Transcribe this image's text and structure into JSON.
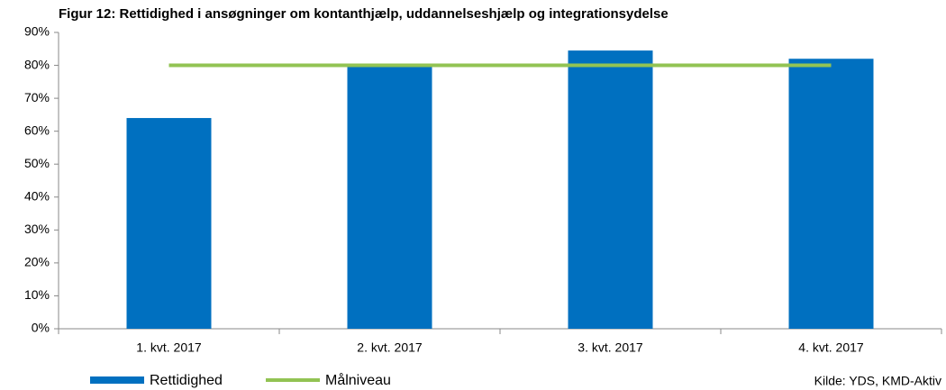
{
  "chart_data": {
    "type": "bar",
    "title": "Figur 12: Rettidighed i ansøgninger om kontanthjælp, uddannelseshjælp og integrationsydelse",
    "categories": [
      "1. kvt. 2017",
      "2. kvt. 2017",
      "3. kvt. 2017",
      "4. kvt. 2017"
    ],
    "series": [
      {
        "name": "Rettidighed",
        "type": "bar",
        "color": "#0070c0",
        "values": [
          64,
          80,
          84.5,
          82
        ]
      },
      {
        "name": "Målniveau",
        "type": "line",
        "color": "#92c353",
        "values": [
          80,
          80,
          80,
          80
        ]
      }
    ],
    "ylim": [
      0,
      90
    ],
    "yticks": [
      {
        "value": 0,
        "label": "0%"
      },
      {
        "value": 10,
        "label": "10%"
      },
      {
        "value": 20,
        "label": "20%"
      },
      {
        "value": 30,
        "label": "30%"
      },
      {
        "value": 40,
        "label": "40%"
      },
      {
        "value": 50,
        "label": "50%"
      },
      {
        "value": 60,
        "label": "60%"
      },
      {
        "value": 70,
        "label": "70%"
      },
      {
        "value": 80,
        "label": "80%"
      },
      {
        "value": 90,
        "label": "90%"
      }
    ],
    "grid": false,
    "source": "Kilde: YDS, KMD-Aktiv"
  }
}
